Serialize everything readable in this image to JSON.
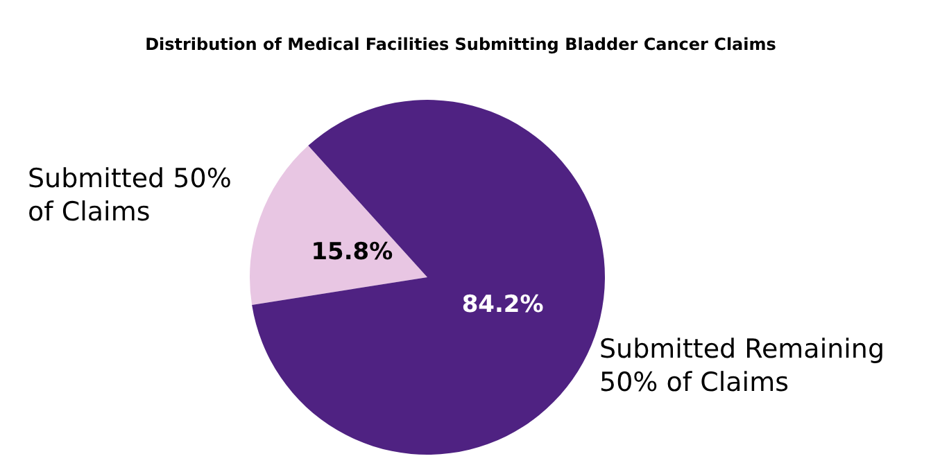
{
  "chart_data": {
    "type": "pie",
    "title": "Distribution of Medical Facilities Submitting Bladder Cancer Claims",
    "categories": [
      "Submitted 50% of Claims",
      "Submitted Remaining 50% of Claims"
    ],
    "values": [
      15.8,
      84.2
    ],
    "colors": [
      "#e8c6e3",
      "#4f2282"
    ],
    "value_labels": [
      "15.8%",
      "84.2%"
    ]
  }
}
